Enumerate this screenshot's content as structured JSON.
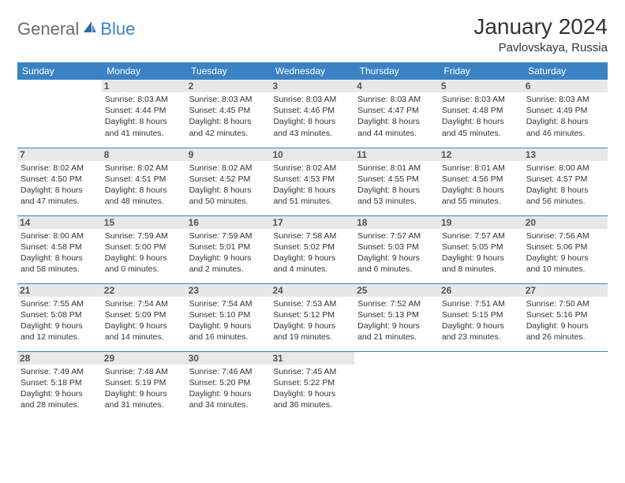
{
  "logo": {
    "part1": "General",
    "part2": "Blue"
  },
  "title": "January 2024",
  "location": "Pavlovskaya, Russia",
  "header_bg": "#3b82c4",
  "day_headers": [
    "Sunday",
    "Monday",
    "Tuesday",
    "Wednesday",
    "Thursday",
    "Friday",
    "Saturday"
  ],
  "weeks": [
    [
      null,
      {
        "n": "1",
        "sr": "Sunrise: 8:03 AM",
        "ss": "Sunset: 4:44 PM",
        "d1": "Daylight: 8 hours",
        "d2": "and 41 minutes."
      },
      {
        "n": "2",
        "sr": "Sunrise: 8:03 AM",
        "ss": "Sunset: 4:45 PM",
        "d1": "Daylight: 8 hours",
        "d2": "and 42 minutes."
      },
      {
        "n": "3",
        "sr": "Sunrise: 8:03 AM",
        "ss": "Sunset: 4:46 PM",
        "d1": "Daylight: 8 hours",
        "d2": "and 43 minutes."
      },
      {
        "n": "4",
        "sr": "Sunrise: 8:03 AM",
        "ss": "Sunset: 4:47 PM",
        "d1": "Daylight: 8 hours",
        "d2": "and 44 minutes."
      },
      {
        "n": "5",
        "sr": "Sunrise: 8:03 AM",
        "ss": "Sunset: 4:48 PM",
        "d1": "Daylight: 8 hours",
        "d2": "and 45 minutes."
      },
      {
        "n": "6",
        "sr": "Sunrise: 8:03 AM",
        "ss": "Sunset: 4:49 PM",
        "d1": "Daylight: 8 hours",
        "d2": "and 46 minutes."
      }
    ],
    [
      {
        "n": "7",
        "sr": "Sunrise: 8:02 AM",
        "ss": "Sunset: 4:50 PM",
        "d1": "Daylight: 8 hours",
        "d2": "and 47 minutes."
      },
      {
        "n": "8",
        "sr": "Sunrise: 8:02 AM",
        "ss": "Sunset: 4:51 PM",
        "d1": "Daylight: 8 hours",
        "d2": "and 48 minutes."
      },
      {
        "n": "9",
        "sr": "Sunrise: 8:02 AM",
        "ss": "Sunset: 4:52 PM",
        "d1": "Daylight: 8 hours",
        "d2": "and 50 minutes."
      },
      {
        "n": "10",
        "sr": "Sunrise: 8:02 AM",
        "ss": "Sunset: 4:53 PM",
        "d1": "Daylight: 8 hours",
        "d2": "and 51 minutes."
      },
      {
        "n": "11",
        "sr": "Sunrise: 8:01 AM",
        "ss": "Sunset: 4:55 PM",
        "d1": "Daylight: 8 hours",
        "d2": "and 53 minutes."
      },
      {
        "n": "12",
        "sr": "Sunrise: 8:01 AM",
        "ss": "Sunset: 4:56 PM",
        "d1": "Daylight: 8 hours",
        "d2": "and 55 minutes."
      },
      {
        "n": "13",
        "sr": "Sunrise: 8:00 AM",
        "ss": "Sunset: 4:57 PM",
        "d1": "Daylight: 8 hours",
        "d2": "and 56 minutes."
      }
    ],
    [
      {
        "n": "14",
        "sr": "Sunrise: 8:00 AM",
        "ss": "Sunset: 4:58 PM",
        "d1": "Daylight: 8 hours",
        "d2": "and 58 minutes."
      },
      {
        "n": "15",
        "sr": "Sunrise: 7:59 AM",
        "ss": "Sunset: 5:00 PM",
        "d1": "Daylight: 9 hours",
        "d2": "and 0 minutes."
      },
      {
        "n": "16",
        "sr": "Sunrise: 7:59 AM",
        "ss": "Sunset: 5:01 PM",
        "d1": "Daylight: 9 hours",
        "d2": "and 2 minutes."
      },
      {
        "n": "17",
        "sr": "Sunrise: 7:58 AM",
        "ss": "Sunset: 5:02 PM",
        "d1": "Daylight: 9 hours",
        "d2": "and 4 minutes."
      },
      {
        "n": "18",
        "sr": "Sunrise: 7:57 AM",
        "ss": "Sunset: 5:03 PM",
        "d1": "Daylight: 9 hours",
        "d2": "and 6 minutes."
      },
      {
        "n": "19",
        "sr": "Sunrise: 7:57 AM",
        "ss": "Sunset: 5:05 PM",
        "d1": "Daylight: 9 hours",
        "d2": "and 8 minutes."
      },
      {
        "n": "20",
        "sr": "Sunrise: 7:56 AM",
        "ss": "Sunset: 5:06 PM",
        "d1": "Daylight: 9 hours",
        "d2": "and 10 minutes."
      }
    ],
    [
      {
        "n": "21",
        "sr": "Sunrise: 7:55 AM",
        "ss": "Sunset: 5:08 PM",
        "d1": "Daylight: 9 hours",
        "d2": "and 12 minutes."
      },
      {
        "n": "22",
        "sr": "Sunrise: 7:54 AM",
        "ss": "Sunset: 5:09 PM",
        "d1": "Daylight: 9 hours",
        "d2": "and 14 minutes."
      },
      {
        "n": "23",
        "sr": "Sunrise: 7:54 AM",
        "ss": "Sunset: 5:10 PM",
        "d1": "Daylight: 9 hours",
        "d2": "and 16 minutes."
      },
      {
        "n": "24",
        "sr": "Sunrise: 7:53 AM",
        "ss": "Sunset: 5:12 PM",
        "d1": "Daylight: 9 hours",
        "d2": "and 19 minutes."
      },
      {
        "n": "25",
        "sr": "Sunrise: 7:52 AM",
        "ss": "Sunset: 5:13 PM",
        "d1": "Daylight: 9 hours",
        "d2": "and 21 minutes."
      },
      {
        "n": "26",
        "sr": "Sunrise: 7:51 AM",
        "ss": "Sunset: 5:15 PM",
        "d1": "Daylight: 9 hours",
        "d2": "and 23 minutes."
      },
      {
        "n": "27",
        "sr": "Sunrise: 7:50 AM",
        "ss": "Sunset: 5:16 PM",
        "d1": "Daylight: 9 hours",
        "d2": "and 26 minutes."
      }
    ],
    [
      {
        "n": "28",
        "sr": "Sunrise: 7:49 AM",
        "ss": "Sunset: 5:18 PM",
        "d1": "Daylight: 9 hours",
        "d2": "and 28 minutes."
      },
      {
        "n": "29",
        "sr": "Sunrise: 7:48 AM",
        "ss": "Sunset: 5:19 PM",
        "d1": "Daylight: 9 hours",
        "d2": "and 31 minutes."
      },
      {
        "n": "30",
        "sr": "Sunrise: 7:46 AM",
        "ss": "Sunset: 5:20 PM",
        "d1": "Daylight: 9 hours",
        "d2": "and 34 minutes."
      },
      {
        "n": "31",
        "sr": "Sunrise: 7:45 AM",
        "ss": "Sunset: 5:22 PM",
        "d1": "Daylight: 9 hours",
        "d2": "and 36 minutes."
      },
      null,
      null,
      null
    ]
  ]
}
